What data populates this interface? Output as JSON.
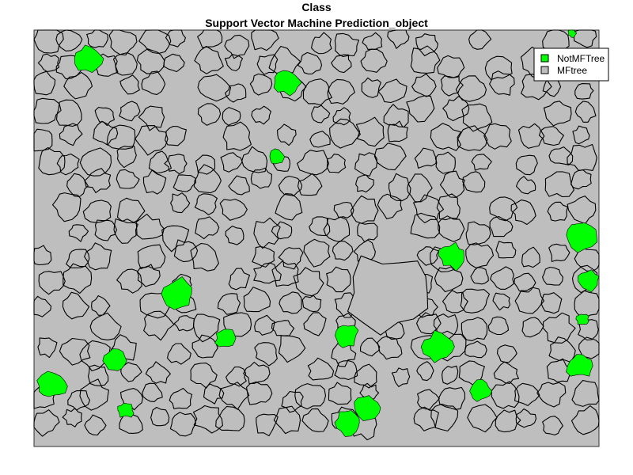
{
  "title": "Class",
  "subtitle": "Support Vector Machine Prediction_object",
  "legend": {
    "placement": "top-right",
    "items": [
      {
        "label": "NotMFTree",
        "color": "#00ff00"
      },
      {
        "label": "MFtree",
        "color": "#bebebe"
      }
    ]
  },
  "colors": {
    "background": "#bebebe",
    "outline": "#000000",
    "notmftree": "#00ff00"
  }
}
